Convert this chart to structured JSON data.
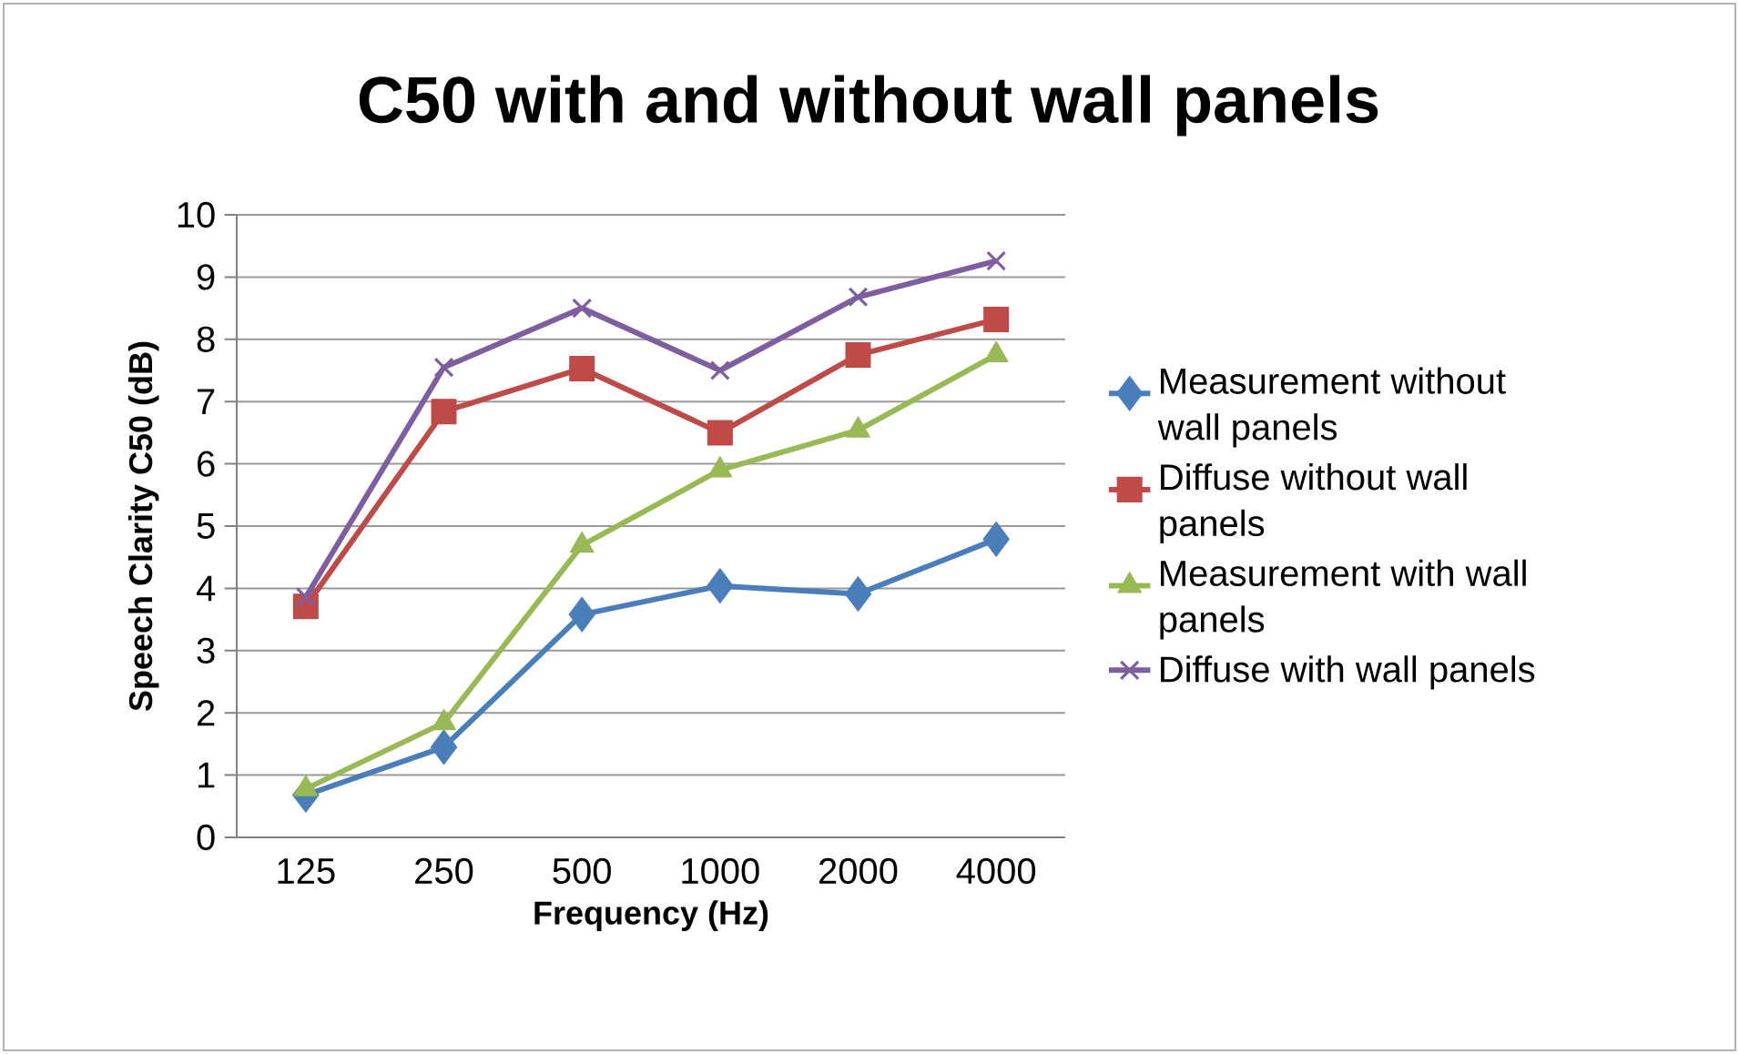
{
  "chart_data": {
    "type": "line",
    "title": "C50 with and without wall panels",
    "xlabel": "Frequency (Hz)",
    "ylabel": "Speech Clarity C50 (dB)",
    "categories": [
      "125",
      "250",
      "500",
      "1000",
      "2000",
      "4000"
    ],
    "series": [
      {
        "name": "Measurement without wall panels",
        "color": "#4a7ebb",
        "marker": "diamond",
        "values": [
          0.68,
          1.45,
          3.58,
          4.04,
          3.91,
          4.79
        ]
      },
      {
        "name": "Diffuse without wall panels",
        "color": "#be4b48",
        "marker": "square",
        "values": [
          3.71,
          6.84,
          7.53,
          6.5,
          7.75,
          8.32
        ]
      },
      {
        "name": "Measurement with wall panels",
        "color": "#98b954",
        "marker": "triangle",
        "values": [
          0.78,
          1.84,
          4.69,
          5.9,
          6.54,
          7.75
        ]
      },
      {
        "name": "Diffuse with wall panels",
        "color": "#7d5fa0",
        "marker": "cross",
        "values": [
          3.86,
          7.55,
          8.5,
          7.5,
          8.68,
          9.26
        ]
      }
    ],
    "ylim": [
      0,
      10
    ],
    "yticks": [
      0,
      1,
      2,
      3,
      4,
      5,
      6,
      7,
      8,
      9,
      10
    ],
    "grid": "y",
    "legend": "right",
    "line_style": "solid"
  }
}
